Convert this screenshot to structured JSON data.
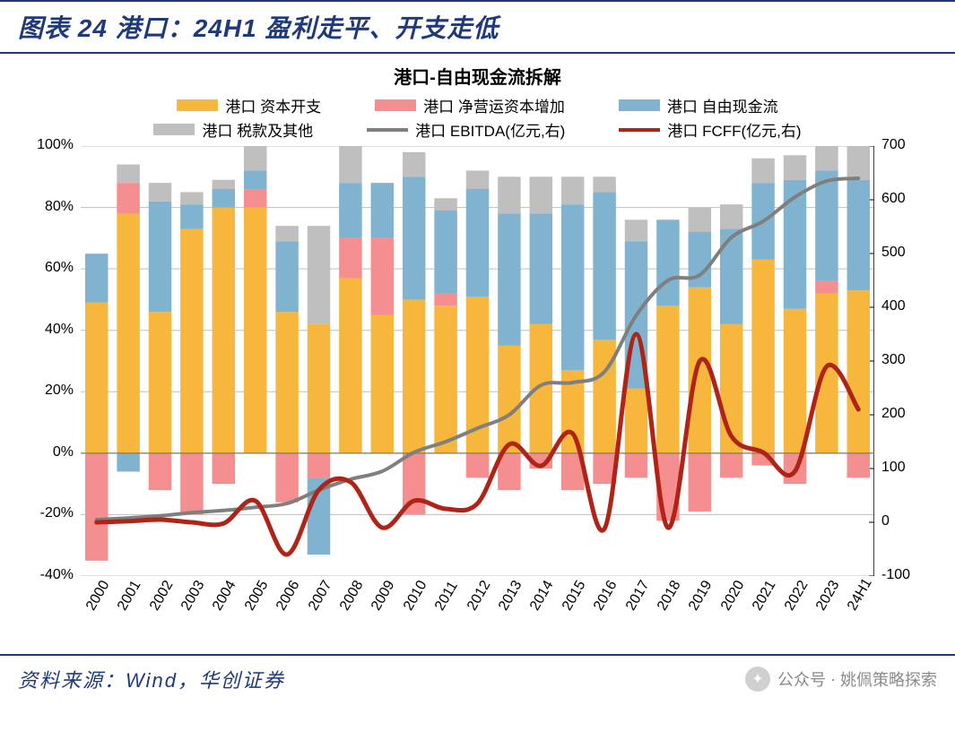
{
  "header": {
    "title": "图表 24  港口：24H1 盈利走平、开支走低"
  },
  "chart": {
    "type": "combo-stacked-bar-dual-axis-line",
    "title": "港口-自由现金流拆解",
    "background_color": "#ffffff",
    "grid_color": "#bfbfbf",
    "grid_width": 1,
    "left_axis": {
      "min": -40,
      "max": 100,
      "tick_step": 20,
      "suffix": "%",
      "label_fontsize": 16
    },
    "right_axis": {
      "min": -100,
      "max": 700,
      "tick_step": 100,
      "label_fontsize": 16
    },
    "categories": [
      "2000",
      "2001",
      "2002",
      "2003",
      "2004",
      "2005",
      "2006",
      "2007",
      "2008",
      "2009",
      "2010",
      "2011",
      "2012",
      "2013",
      "2014",
      "2015",
      "2016",
      "2017",
      "2018",
      "2019",
      "2020",
      "2021",
      "2022",
      "2023",
      "24H1"
    ],
    "bar_width": 0.72,
    "legend": {
      "items": [
        {
          "label": "港口 资本开支",
          "swatch": "#f6b73c"
        },
        {
          "label": "港口 净营运资本增加",
          "swatch": "#f58f8f"
        },
        {
          "label": "港口 自由现金流",
          "swatch": "#7fb3cf"
        },
        {
          "label": "港口 税款及其他",
          "swatch": "#bfbfbf"
        },
        {
          "label": "港口 EBITDA(亿元,右)",
          "line": "#7f7f7f"
        },
        {
          "label": "港口 FCFF(亿元,右)",
          "line": "#b02418"
        }
      ],
      "fontsize": 17
    },
    "series_stacked": {
      "capex": {
        "color": "#f6b73c",
        "values": [
          49,
          78,
          46,
          73,
          80,
          80,
          46,
          42,
          57,
          45,
          50,
          48,
          51,
          35,
          42,
          27,
          37,
          21,
          48,
          54,
          42,
          63,
          47,
          52,
          53
        ]
      },
      "nwc_increase": {
        "color": "#f58f8f",
        "values": [
          -35,
          10,
          -12,
          -20,
          -10,
          6,
          -16,
          -8,
          13,
          25,
          -20,
          4,
          -8,
          -12,
          -5,
          -12,
          -10,
          -8,
          -22,
          -19,
          -8,
          -4,
          -10,
          4,
          -8
        ]
      },
      "fcf": {
        "color": "#7fb3cf",
        "values": [
          16,
          -6,
          36,
          8,
          6,
          6,
          23,
          -25,
          18,
          18,
          40,
          27,
          35,
          43,
          36,
          54,
          48,
          48,
          28,
          18,
          31,
          25,
          42,
          36,
          36
        ]
      },
      "tax_other": {
        "color": "#bfbfbf",
        "values": [
          0,
          6,
          6,
          4,
          3,
          14,
          5,
          32,
          12,
          0,
          8,
          4,
          6,
          12,
          12,
          9,
          5,
          7,
          0,
          8,
          8,
          8,
          8,
          8,
          11
        ]
      }
    },
    "lines": {
      "ebitda": {
        "color": "#7f7f7f",
        "width": 4,
        "values": [
          5,
          8,
          12,
          18,
          22,
          28,
          35,
          60,
          80,
          95,
          130,
          150,
          175,
          200,
          255,
          260,
          280,
          385,
          450,
          460,
          530,
          560,
          605,
          635,
          640
        ]
      },
      "fcff": {
        "color": "#b02418",
        "width": 5,
        "values": [
          0,
          2,
          5,
          0,
          -2,
          40,
          -60,
          60,
          75,
          -10,
          40,
          25,
          35,
          145,
          105,
          165,
          -12,
          350,
          -10,
          300,
          160,
          130,
          95,
          290,
          210
        ]
      }
    },
    "x_label_rotation_deg": -60
  },
  "footer": {
    "source": "资料来源：Wind，华创证券",
    "wechat_label": "公众号",
    "wechat_account": "姚佩策略探索"
  }
}
